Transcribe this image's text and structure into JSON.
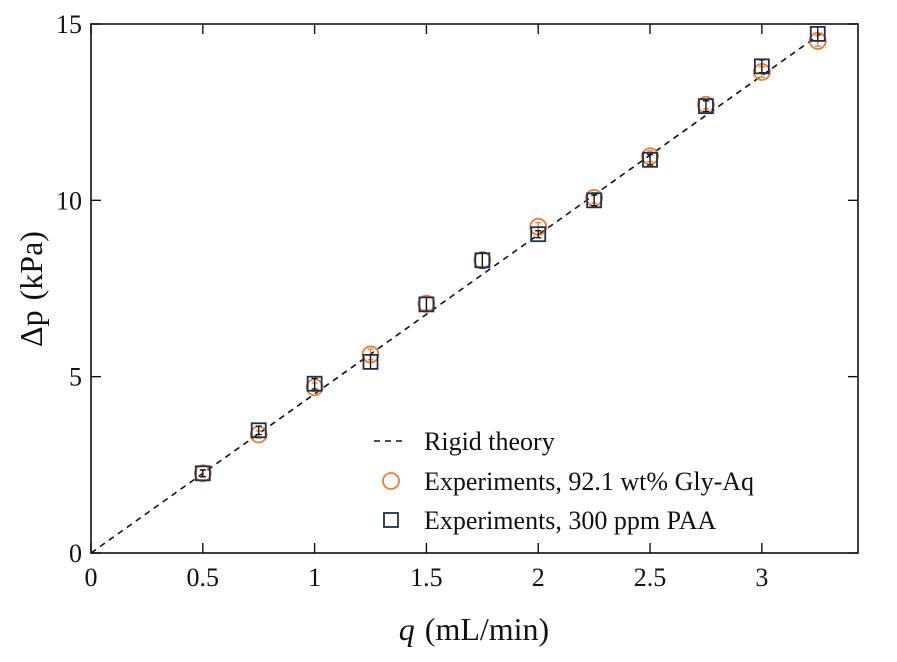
{
  "chart_data": {
    "type": "scatter",
    "xlabel_symbol": "q",
    "xlabel_unit": "(mL/min)",
    "ylabel_symbol": "Δp",
    "ylabel_unit": "(kPa)",
    "xlim": [
      0,
      3.43
    ],
    "ylim": [
      0,
      15
    ],
    "x_ticks": [
      0,
      0.5,
      1,
      1.5,
      2,
      2.5,
      3
    ],
    "x_tick_labels": [
      "0",
      "0.5",
      "1",
      "1.5",
      "2",
      "2.5",
      "3"
    ],
    "y_ticks": [
      0,
      5,
      10,
      15
    ],
    "y_tick_labels": [
      "0",
      "5",
      "10",
      "15"
    ],
    "legend_position": "bottom-right",
    "series": [
      {
        "name": "Rigid theory",
        "style": "dashed-line",
        "color": "#111111",
        "x": [
          0,
          3.28
        ],
        "y": [
          0,
          14.8
        ]
      },
      {
        "name": "Experiments, 92.1 wt% Gly-Aq",
        "style": "open-circle",
        "color": "#ef7b30",
        "x": [
          0.5,
          0.75,
          1.0,
          1.25,
          1.5,
          1.75,
          2.0,
          2.25,
          2.5,
          2.75,
          3.0,
          3.25
        ],
        "y": [
          2.26,
          3.36,
          4.7,
          5.63,
          7.07,
          8.3,
          9.25,
          10.07,
          11.25,
          12.71,
          13.64,
          14.52
        ],
        "err": [
          0.08,
          0.1,
          0.12,
          0.15,
          0.18,
          0.2,
          0.12,
          0.15,
          0.15,
          0.12,
          0.15,
          0.15
        ]
      },
      {
        "name": "Experiments, 300 ppm PAA",
        "style": "open-square",
        "color": "#1f2f4f",
        "x": [
          0.5,
          0.75,
          1.0,
          1.25,
          1.5,
          1.75,
          2.0,
          2.25,
          2.5,
          2.75,
          3.0,
          3.25
        ],
        "y": [
          2.26,
          3.48,
          4.8,
          5.42,
          7.05,
          8.3,
          9.04,
          10.0,
          11.15,
          12.67,
          13.8,
          14.72
        ],
        "err": [
          0.1,
          0.12,
          0.15,
          0.2,
          0.2,
          0.22,
          0.1,
          0.15,
          0.15,
          0.15,
          0.18,
          0.2
        ]
      }
    ]
  }
}
